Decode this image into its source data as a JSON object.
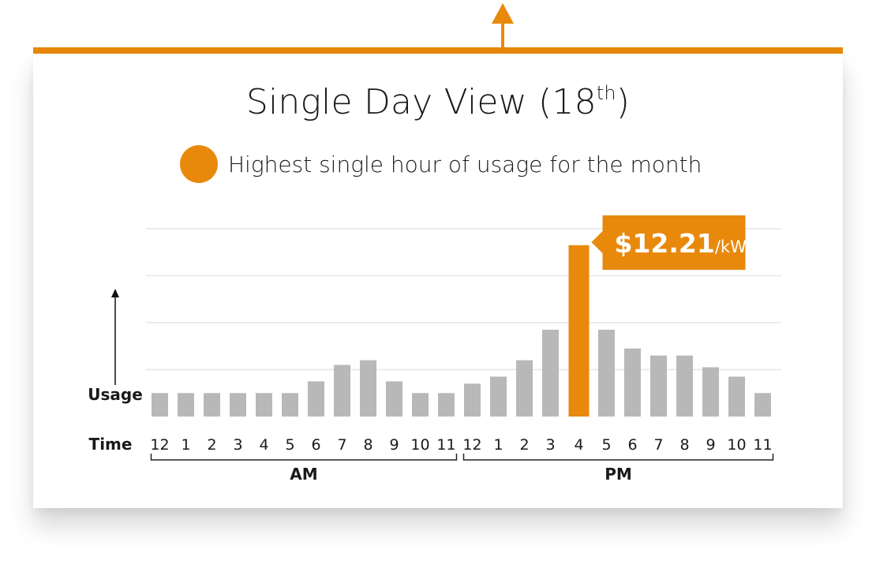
{
  "title": {
    "text": "Single Day View (18",
    "sup": "th",
    "close": ")"
  },
  "legend": {
    "label": "Highest single hour of usage for the month",
    "color": "#e8890c"
  },
  "colors": {
    "accent": "#e8890c",
    "bar": "#b8b8b8",
    "grid": "#e6e6e6",
    "text": "#1a1a1a"
  },
  "chart_data": {
    "type": "bar",
    "ylabel": "Usage",
    "xlabel": "Time",
    "ylim": [
      0,
      4
    ],
    "grid": true,
    "categories": [
      "12",
      "1",
      "2",
      "3",
      "4",
      "5",
      "6",
      "7",
      "8",
      "9",
      "10",
      "11",
      "12",
      "1",
      "2",
      "3",
      "4",
      "5",
      "6",
      "7",
      "8",
      "9",
      "10",
      "11"
    ],
    "values": [
      0.5,
      0.5,
      0.5,
      0.5,
      0.5,
      0.5,
      0.75,
      1.1,
      1.2,
      0.75,
      0.5,
      0.5,
      0.7,
      0.85,
      1.2,
      1.85,
      3.65,
      1.85,
      1.45,
      1.3,
      1.3,
      1.05,
      0.85,
      0.5
    ],
    "highlight_index": 16,
    "groups": [
      {
        "label": "AM",
        "start": 0,
        "end": 11
      },
      {
        "label": "PM",
        "start": 12,
        "end": 23
      }
    ],
    "annotation": {
      "index": 16,
      "value": "$12.21",
      "unit": "/kW"
    }
  }
}
